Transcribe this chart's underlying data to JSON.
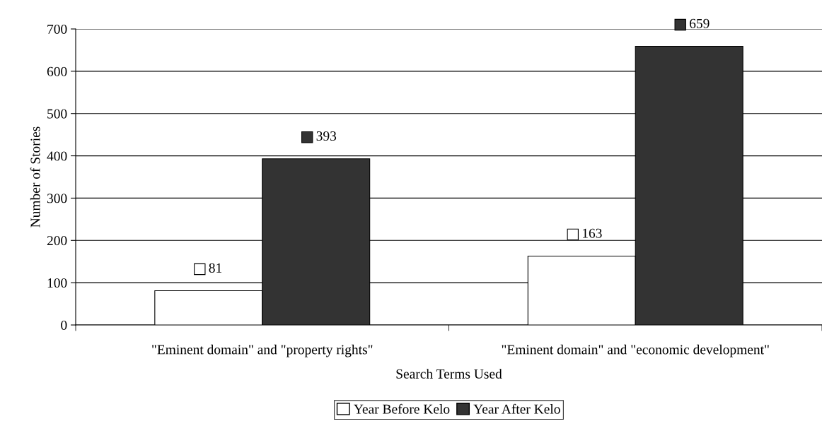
{
  "chart_data": {
    "type": "bar",
    "xlabel": "Search Terms Used",
    "ylabel": "Number of Stories",
    "categories": [
      "\"Eminent domain\" and \"property rights\"",
      "\"Eminent domain\" and \"economic development\""
    ],
    "series": [
      {
        "name": "Year Before Kelo",
        "color": "#ffffff",
        "values": [
          81,
          163
        ]
      },
      {
        "name": "Year After Kelo",
        "color": "#333333",
        "values": [
          393,
          659
        ]
      }
    ],
    "ylim": [
      0,
      700
    ],
    "yticks": [
      0,
      100,
      200,
      300,
      400,
      500,
      600,
      700
    ],
    "grid": "y",
    "legend": "bottom",
    "data_labels": true
  }
}
